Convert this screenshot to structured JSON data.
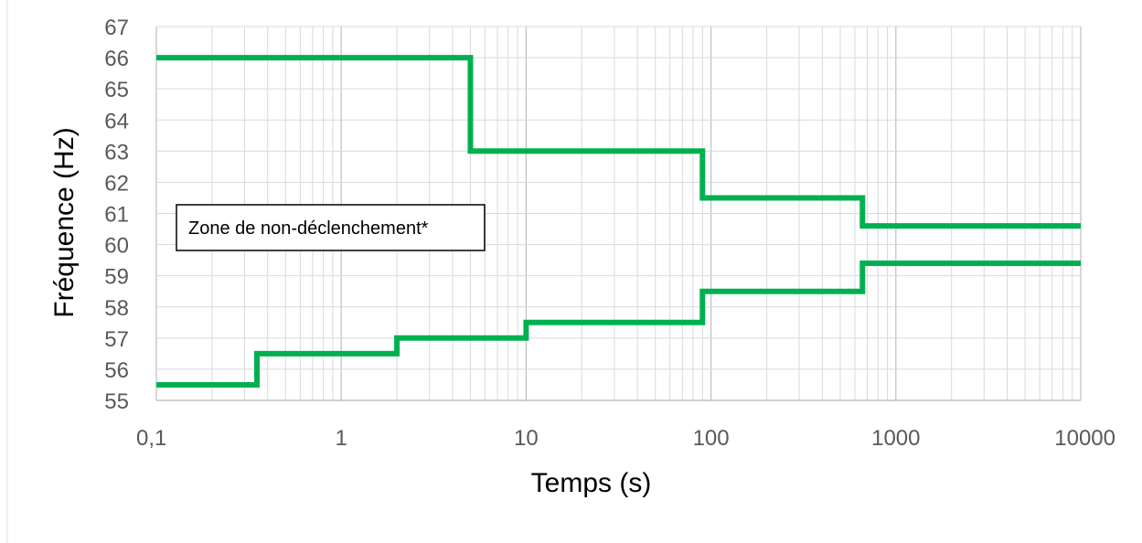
{
  "chart_data": {
    "type": "line",
    "xscale": "log",
    "xlim": [
      0.1,
      10000
    ],
    "ylim": [
      55,
      67
    ],
    "grid": true,
    "xlabel": "Temps (s)",
    "ylabel": "Fréquence (Hz)",
    "x_ticks": [
      0.1,
      1,
      10,
      100,
      1000,
      10000
    ],
    "x_tick_labels": [
      "0,1",
      "1",
      "10",
      "100",
      "1000",
      "10000"
    ],
    "y_ticks": [
      55,
      56,
      57,
      58,
      59,
      60,
      61,
      62,
      63,
      64,
      65,
      66,
      67
    ],
    "y_tick_labels": [
      "55",
      "56",
      "57",
      "58",
      "59",
      "60",
      "61",
      "62",
      "63",
      "64",
      "65",
      "66",
      "67"
    ],
    "series": [
      {
        "color": "#00b050",
        "step": true,
        "points": [
          [
            0.1,
            66
          ],
          [
            5,
            66
          ],
          [
            5,
            63
          ],
          [
            90,
            63
          ],
          [
            90,
            61.5
          ],
          [
            660,
            61.5
          ],
          [
            660,
            60.6
          ],
          [
            10000,
            60.6
          ]
        ]
      },
      {
        "color": "#00b050",
        "step": true,
        "points": [
          [
            0.1,
            55.5
          ],
          [
            0.35,
            55.5
          ],
          [
            0.35,
            56.5
          ],
          [
            2,
            56.5
          ],
          [
            2,
            57
          ],
          [
            10,
            57
          ],
          [
            10,
            57.5
          ],
          [
            90,
            57.5
          ],
          [
            90,
            58.5
          ],
          [
            660,
            58.5
          ],
          [
            660,
            59.4
          ],
          [
            10000,
            59.4
          ]
        ]
      }
    ],
    "annotations": [
      {
        "text": "Zone de non-déclenchement*",
        "x": 0.12,
        "y": 60.5
      }
    ]
  }
}
